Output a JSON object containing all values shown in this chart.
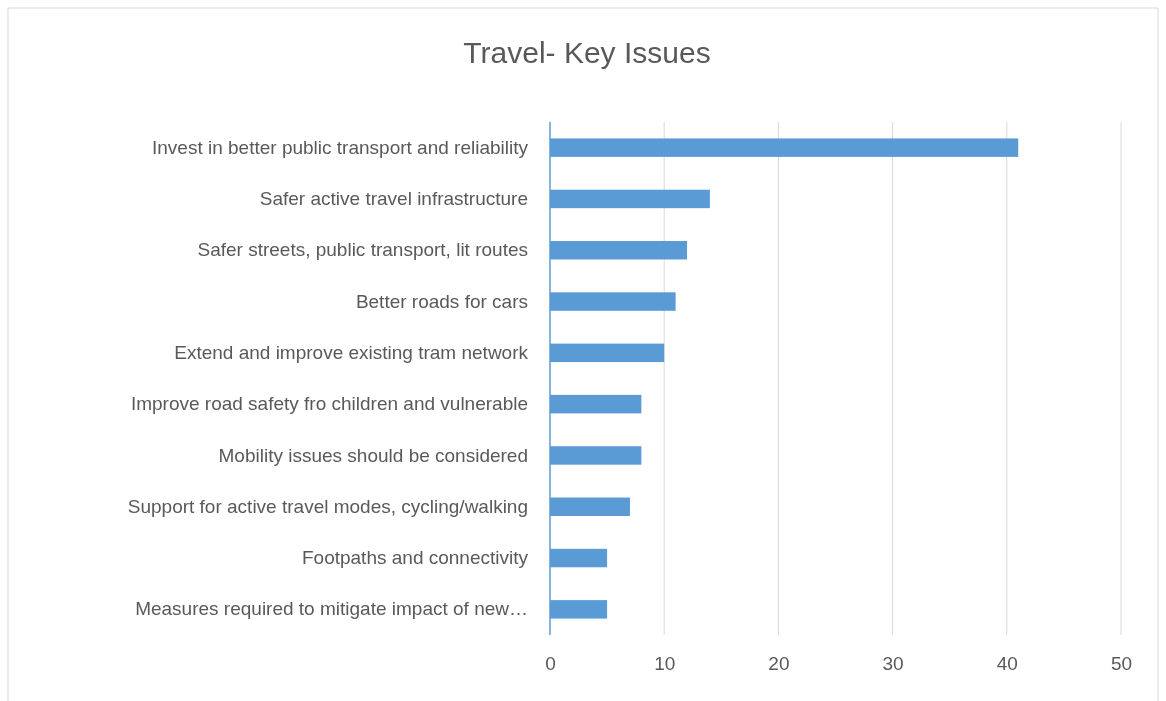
{
  "chart_data": {
    "type": "bar",
    "orientation": "horizontal",
    "title": "Travel- Key Issues",
    "categories": [
      "Invest in better public transport and reliability",
      "Safer active travel infrastructure",
      "Safer streets, public transport, lit routes",
      "Better roads for cars",
      "Extend and improve existing tram network",
      "Improve road safety fro children and vulnerable",
      "Mobility issues should be considered",
      "Support for active travel modes, cycling/walking",
      "Footpaths and connectivity",
      "Measures required to mitigate impact of new…"
    ],
    "values": [
      41,
      14,
      12,
      11,
      10,
      8,
      8,
      7,
      5,
      5
    ],
    "color": "#5b9bd5",
    "xlim": [
      0,
      50
    ],
    "xticks": [
      0,
      10,
      20,
      30,
      40,
      50
    ],
    "grid": "x"
  }
}
